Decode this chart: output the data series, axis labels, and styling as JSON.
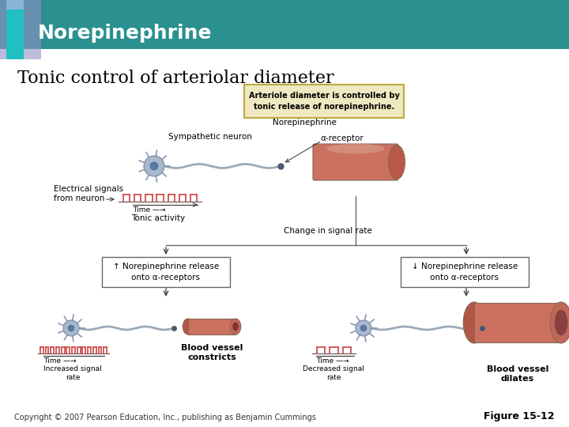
{
  "title": "Norepinephrine",
  "subtitle": "Tonic control of arteriolar diameter",
  "header_bg_color": "#2a9090",
  "header_accent_color1": "#8ab4d4",
  "header_accent_color2": "#20c0c0",
  "header_accent_bg": "#9090c8",
  "bg_color": "#ffffff",
  "title_color": "#ffffff",
  "subtitle_color": "#000000",
  "copyright_text": "Copyright © 2007 Pearson Education, Inc., publishing as Benjamin Cummings",
  "figure_label": "Figure 15-12",
  "note_box_text": "Arteriole diameter is controlled by\ntonic release of norepinephrine.",
  "note_box_bg": "#f0e8c0",
  "note_box_border": "#c0a840",
  "label_sympathetic": "Sympathetic neuron",
  "label_norepinephrine": "Norepinephrine",
  "label_alpha_receptor": "α-receptor",
  "label_electrical": "Electrical signals\nfrom neuron",
  "label_time_tonic": "Time —→",
  "label_tonic": "Tonic activity",
  "label_change": "Change in signal rate",
  "label_increase_box": "↑ Norepinephrine release\nonto α-receptors",
  "label_decrease_box": "↓ Norepinephrine release\nonto α-receptors",
  "label_time_increased": "Time —→",
  "label_increased_rate": "Increased signal\nrate",
  "label_constricts": "Blood vessel\nconstricts",
  "label_time_decreased": "Time —→",
  "label_decreased_rate": "Decreased signal\nrate",
  "label_dilates": "Blood vessel\ndilates",
  "vessel_color": "#cc7060",
  "vessel_end_color": "#b85848",
  "vessel_dark": "#a04838",
  "neuron_body_color": "#a8b8cc",
  "neuron_nucleus_color": "#5878a8",
  "neuron_spine_color": "#8898b0",
  "axon_color": "#9aaabb",
  "signal_color": "#cc4444",
  "box_border_color": "#666666",
  "arrow_color": "#444444",
  "line_color": "#666666",
  "font_title": 18,
  "font_subtitle": 16,
  "font_note": 7,
  "font_label": 7.5,
  "font_small": 6.5,
  "font_bold_label": 8,
  "font_copyright": 7,
  "font_figure": 9
}
